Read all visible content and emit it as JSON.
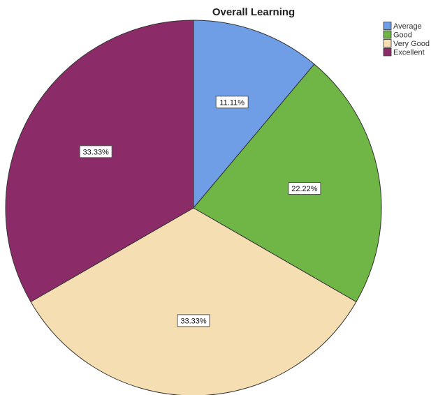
{
  "chart_data": {
    "type": "pie",
    "title": "Overall Learning",
    "categories": [
      "Average",
      "Good",
      "Very Good",
      "Excellent"
    ],
    "values": [
      11.11,
      22.22,
      33.33,
      33.33
    ],
    "labels": [
      "11.11%",
      "22.22%",
      "33.33%",
      "33.33%"
    ],
    "colors": [
      "#6f9ee6",
      "#6fb646",
      "#f5dfb2",
      "#8b2c69"
    ],
    "start_angle_deg": 0,
    "direction": "clockwise",
    "legend_position": "top-right"
  }
}
